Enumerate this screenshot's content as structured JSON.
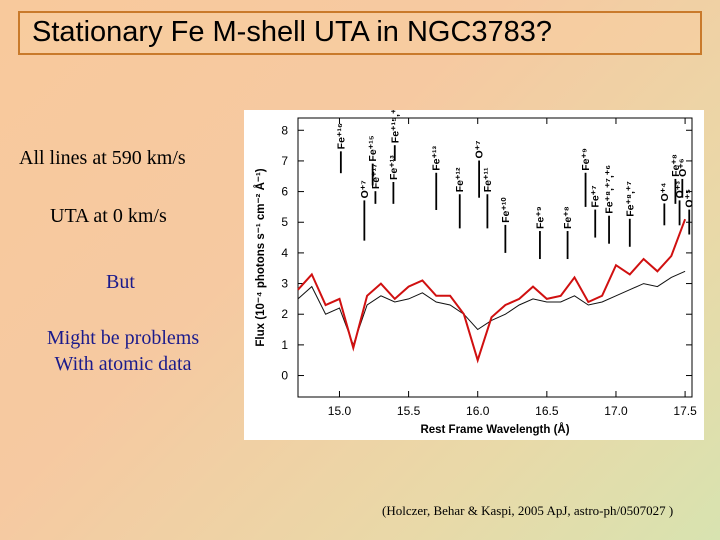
{
  "slide": {
    "title": "Stationary Fe M-shell UTA in NGC3783?",
    "lines_text": "All lines at 590 km/s",
    "uta_text": "UTA at 0 km/s",
    "but_text": "But",
    "problems_line1": "Might be problems",
    "problems_line2": "With atomic data",
    "citation": "(Holczer, Behar & Kaspi, 2005 ApJ, astro-ph/0507027 )"
  },
  "colors": {
    "model_line": "#d01010",
    "data_line": "#111111",
    "text_blue": "#1b1b8c",
    "title_border": "#c97a2b"
  },
  "chart_data": {
    "type": "line",
    "xlabel": "Rest Frame Wavelength (Å)",
    "ylabel": "Flux (10⁻⁴ photons s⁻¹ cm⁻² Å⁻¹)",
    "xlim": [
      14.7,
      17.55
    ],
    "ylim": [
      -0.7,
      8.4
    ],
    "x_ticks": [
      15.0,
      15.5,
      16.0,
      16.5,
      17.0,
      17.5
    ],
    "x_tick_labels": [
      "15.0",
      "15.5",
      "16.0",
      "16.5",
      "17.0",
      "17.5"
    ],
    "y_ticks": [
      0,
      1,
      2,
      3,
      4,
      5,
      6,
      7,
      8
    ],
    "y_tick_labels": [
      "0",
      "1",
      "2",
      "3",
      "4",
      "5",
      "6",
      "7",
      "8"
    ],
    "grid": false,
    "series": [
      {
        "style": "data",
        "x": [
          14.7,
          14.8,
          14.9,
          15.0,
          15.1,
          15.2,
          15.3,
          15.4,
          15.5,
          15.6,
          15.7,
          15.8,
          15.9,
          16.0,
          16.1,
          16.2,
          16.3,
          16.4,
          16.5,
          16.6,
          16.7,
          16.8,
          16.9,
          17.0,
          17.1,
          17.2,
          17.3,
          17.4,
          17.5
        ],
        "y": [
          2.5,
          2.9,
          2.0,
          2.2,
          1.0,
          2.3,
          2.6,
          2.4,
          2.5,
          2.7,
          2.4,
          2.3,
          2.0,
          1.5,
          1.8,
          2.0,
          2.3,
          2.5,
          2.4,
          2.4,
          2.6,
          2.3,
          2.4,
          2.6,
          2.8,
          3.0,
          2.9,
          3.2,
          3.4
        ]
      },
      {
        "style": "model",
        "x": [
          14.7,
          14.8,
          14.9,
          15.0,
          15.1,
          15.2,
          15.3,
          15.4,
          15.5,
          15.6,
          15.7,
          15.8,
          15.9,
          16.0,
          16.1,
          16.2,
          16.3,
          16.4,
          16.5,
          16.6,
          16.7,
          16.8,
          16.9,
          17.0,
          17.1,
          17.2,
          17.3,
          17.4,
          17.5
        ],
        "y": [
          2.8,
          3.3,
          2.3,
          2.5,
          0.9,
          2.6,
          3.0,
          2.5,
          2.9,
          3.1,
          2.6,
          2.6,
          2.0,
          0.5,
          1.9,
          2.3,
          2.5,
          2.9,
          2.5,
          2.6,
          3.2,
          2.4,
          2.6,
          3.6,
          3.3,
          3.8,
          3.4,
          3.9,
          5.1
        ]
      }
    ],
    "annotations": [
      {
        "label": "Fe⁺¹⁶",
        "x": 15.01,
        "y_top": 7.9,
        "y_bottom": 6.6
      },
      {
        "label": "Fe⁺¹⁵",
        "x": 15.24,
        "y_top": 7.5,
        "y_bottom": 6.2
      },
      {
        "label": "Fe⁺¹⁷",
        "x": 15.26,
        "y_top": 6.6,
        "y_bottom": 5.6
      },
      {
        "label": "Fe⁺¹⁵,⁺¹⁸",
        "x": 15.4,
        "y_top": 8.1,
        "y_bottom": 7.0
      },
      {
        "label": "Fe⁺¹³",
        "x": 15.39,
        "y_top": 6.9,
        "y_bottom": 5.6
      },
      {
        "label": "O⁺⁷",
        "x": 15.18,
        "y_top": 6.3,
        "y_bottom": 4.4
      },
      {
        "label": "Fe⁺¹³",
        "x": 15.7,
        "y_top": 7.2,
        "y_bottom": 5.4
      },
      {
        "label": "O⁺⁷",
        "x": 16.01,
        "y_top": 7.6,
        "y_bottom": 5.8
      },
      {
        "label": "Fe⁺¹²",
        "x": 15.87,
        "y_top": 6.5,
        "y_bottom": 4.8
      },
      {
        "label": "Fe⁺¹¹",
        "x": 16.07,
        "y_top": 6.5,
        "y_bottom": 4.8
      },
      {
        "label": "Fe⁺¹⁰",
        "x": 16.2,
        "y_top": 5.5,
        "y_bottom": 4.0
      },
      {
        "label": "Fe⁺⁹",
        "x": 16.45,
        "y_top": 5.3,
        "y_bottom": 3.8
      },
      {
        "label": "Fe⁺⁸",
        "x": 16.65,
        "y_top": 5.3,
        "y_bottom": 3.8
      },
      {
        "label": "Fe⁺⁹",
        "x": 16.78,
        "y_top": 7.2,
        "y_bottom": 5.5
      },
      {
        "label": "Fe⁺⁷",
        "x": 16.85,
        "y_top": 6.0,
        "y_bottom": 4.5
      },
      {
        "label": "Fe⁺⁸,⁺⁷,⁺⁶",
        "x": 16.95,
        "y_top": 5.8,
        "y_bottom": 4.3
      },
      {
        "label": "Fe⁺⁸,⁺⁷",
        "x": 17.1,
        "y_top": 5.7,
        "y_bottom": 4.2
      },
      {
        "label": "O⁺⁴",
        "x": 17.35,
        "y_top": 6.2,
        "y_bottom": 4.9
      },
      {
        "label": "Fe⁺⁸",
        "x": 17.43,
        "y_top": 7.0,
        "y_bottom": 5.6
      },
      {
        "label": "O⁺⁵",
        "x": 17.53,
        "y_top": 6.0,
        "y_bottom": 4.6
      },
      {
        "label": "O⁺³",
        "x": 17.46,
        "y_top": 6.3,
        "y_bottom": 4.9
      },
      {
        "label": "O⁺⁶",
        "x": 17.48,
        "y_top": 7.0,
        "y_bottom": 5.8
      }
    ]
  }
}
